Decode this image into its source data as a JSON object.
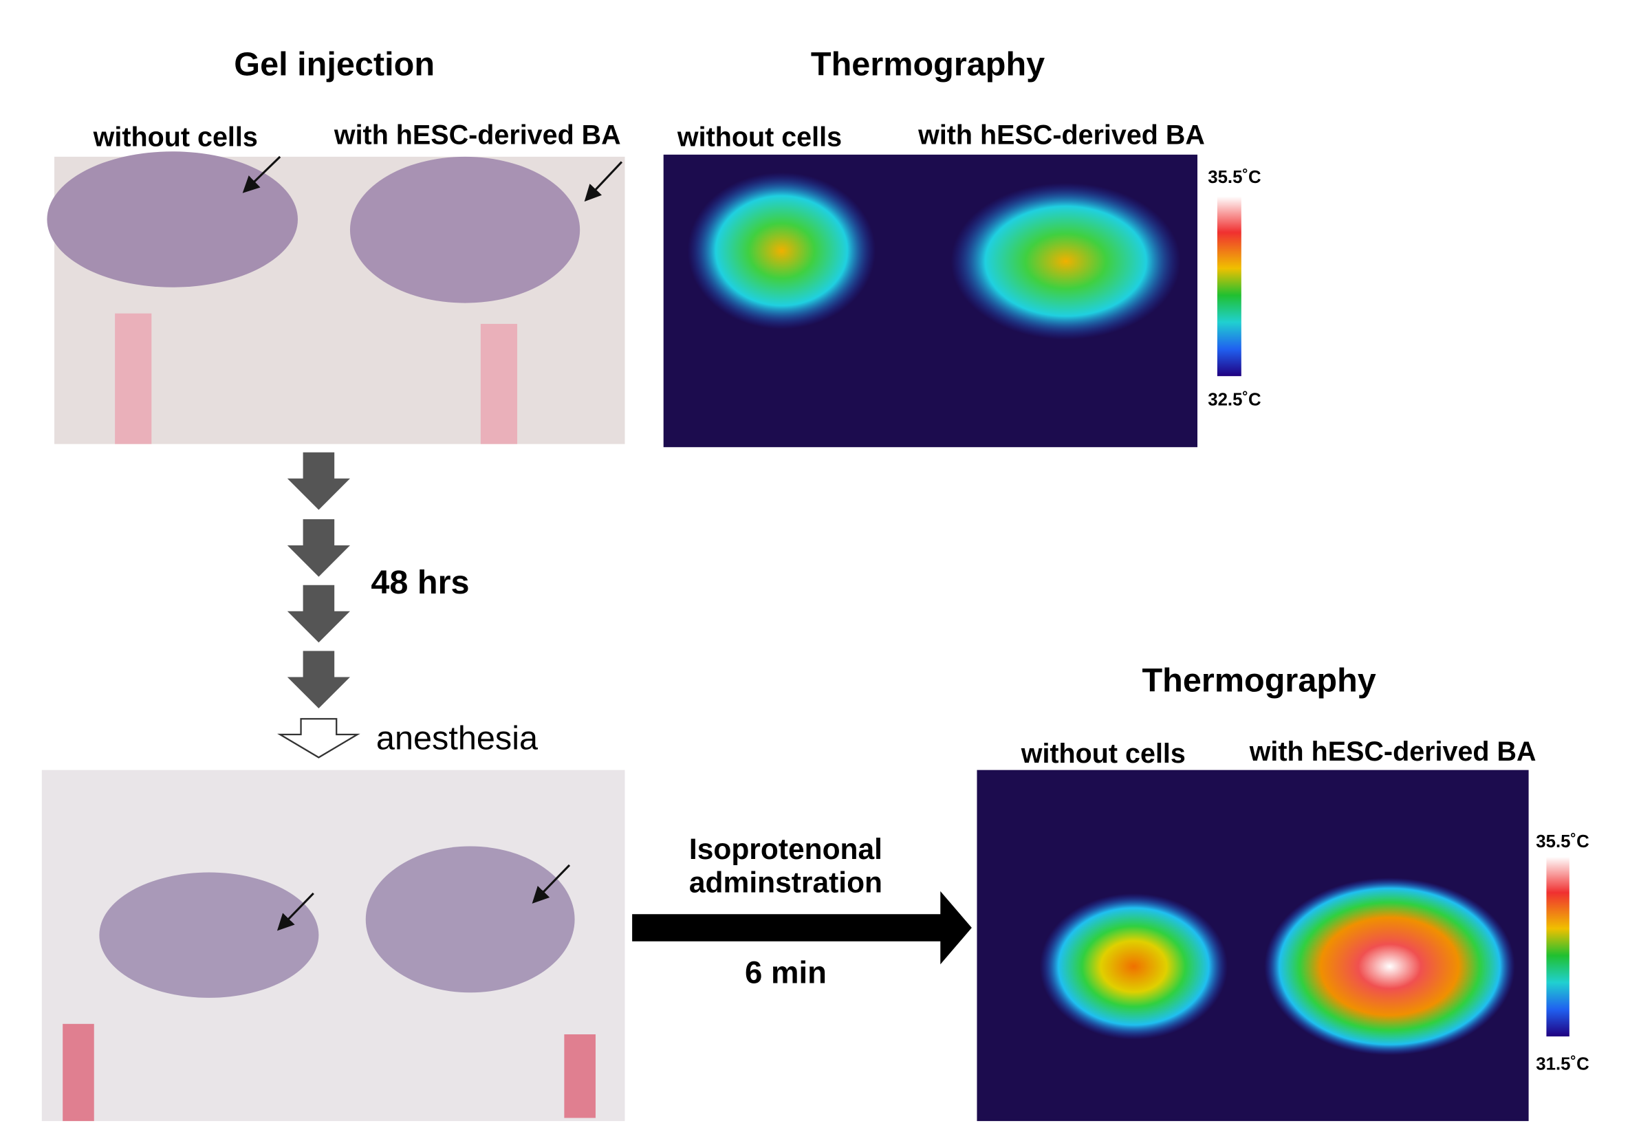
{
  "gel_injection": {
    "title": "Gel injection",
    "labels": [
      "without cells",
      "with hESC-derived BA"
    ]
  },
  "thermography_top": {
    "title": "Thermography",
    "labels": [
      "without cells",
      "with hESC-derived BA"
    ],
    "scale": [
      "35.5˚C",
      "32.5˚C"
    ]
  },
  "timeline": {
    "wait": "48 hrs",
    "step": "anesthesia"
  },
  "treatment": {
    "lines": [
      "Isoprotenonal",
      "adminstration"
    ],
    "duration": "6 min"
  },
  "thermography_bottom": {
    "title": "Thermography",
    "labels": [
      "without cells",
      "with hESC-derived BA"
    ],
    "scale": [
      "35.5˚C",
      "31.5˚C"
    ]
  }
}
